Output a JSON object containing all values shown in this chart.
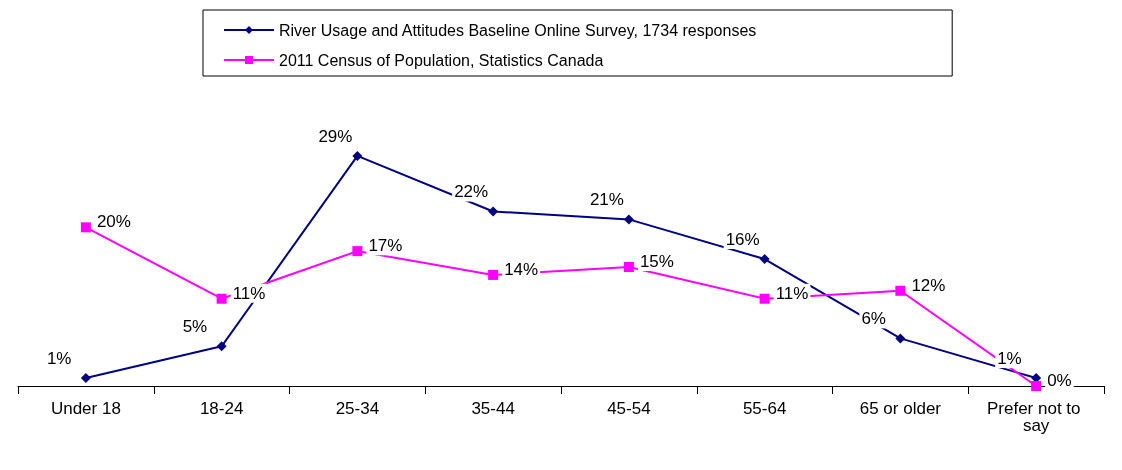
{
  "chart_data": {
    "type": "line",
    "categories": [
      "Under 18",
      "18-24",
      "25-34",
      "35-44",
      "45-54",
      "55-64",
      "65 or older",
      "Prefer not to say"
    ],
    "series": [
      {
        "name": "River Usage and Attitudes Baseline Online Survey, 1734 responses",
        "color": "#000080",
        "marker": "diamond",
        "values": [
          1,
          5,
          29,
          22,
          21,
          16,
          6,
          1
        ],
        "value_labels": [
          "1%",
          "5%",
          "29%",
          "22%",
          "21%",
          "16%",
          "6%",
          "1%"
        ]
      },
      {
        "name": "2011 Census of Population, Statistics Canada",
        "color": "#ff00ff",
        "marker": "square",
        "values": [
          20,
          11,
          17,
          14,
          15,
          11,
          12,
          0
        ],
        "value_labels": [
          "20%",
          "11%",
          "17%",
          "14%",
          "15%",
          "11%",
          "12%",
          "0%"
        ]
      }
    ],
    "legend": "top",
    "grid": false,
    "line_style": "solid"
  }
}
